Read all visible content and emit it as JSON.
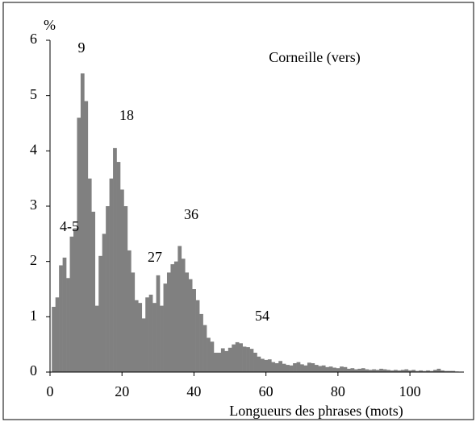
{
  "chart_data": {
    "type": "bar",
    "y_label": "%",
    "x_label": "Longueurs des phrases (mots)",
    "annotations": [
      "Corneille (vers)",
      "9",
      "18",
      "4-5",
      "27",
      "36",
      "54"
    ],
    "color": "#808080",
    "x": [
      1,
      2,
      3,
      4,
      5,
      6,
      7,
      8,
      9,
      10,
      11,
      12,
      13,
      14,
      15,
      16,
      17,
      18,
      19,
      20,
      21,
      22,
      23,
      24,
      25,
      26,
      27,
      28,
      29,
      30,
      31,
      32,
      33,
      34,
      35,
      36,
      37,
      38,
      39,
      40,
      41,
      42,
      43,
      44,
      45,
      46,
      47,
      48,
      49,
      50,
      51,
      52,
      53,
      54,
      55,
      56,
      57,
      58,
      59,
      60,
      61,
      62,
      63,
      64,
      65,
      66,
      67,
      68,
      69,
      70,
      71,
      72,
      73,
      74,
      75,
      76,
      77,
      78,
      79,
      80,
      81,
      82,
      83,
      84,
      85,
      86,
      87,
      88,
      89,
      90,
      91,
      92,
      93,
      94,
      95,
      96,
      97,
      98,
      99,
      100,
      101,
      102,
      103,
      104,
      105,
      106,
      107,
      108,
      109,
      110,
      111,
      112,
      113
    ],
    "values": [
      1.18,
      1.35,
      1.93,
      2.07,
      1.7,
      2.45,
      2.6,
      4.6,
      5.4,
      4.9,
      3.5,
      2.9,
      1.2,
      2.1,
      2.5,
      3.0,
      3.5,
      4.05,
      3.8,
      3.3,
      3.0,
      2.2,
      1.8,
      1.3,
      1.25,
      0.97,
      1.35,
      1.4,
      1.25,
      1.75,
      1.2,
      1.6,
      1.8,
      1.95,
      2.0,
      2.28,
      2.05,
      1.8,
      1.68,
      1.5,
      1.3,
      1.05,
      0.85,
      0.62,
      0.55,
      0.35,
      0.35,
      0.43,
      0.38,
      0.44,
      0.5,
      0.54,
      0.52,
      0.46,
      0.45,
      0.42,
      0.35,
      0.28,
      0.24,
      0.22,
      0.23,
      0.18,
      0.16,
      0.2,
      0.15,
      0.13,
      0.12,
      0.16,
      0.18,
      0.14,
      0.12,
      0.17,
      0.16,
      0.13,
      0.11,
      0.12,
      0.09,
      0.1,
      0.08,
      0.07,
      0.1,
      0.09,
      0.06,
      0.07,
      0.05,
      0.06,
      0.07,
      0.05,
      0.04,
      0.05,
      0.04,
      0.06,
      0.05,
      0.04,
      0.03,
      0.04,
      0.03,
      0.04,
      0.05,
      0.03,
      0.04,
      0.02,
      0.03,
      0.02,
      0.03,
      0.02,
      0.04,
      0.06,
      0.03,
      0.02,
      0.02,
      0.02,
      0.01
    ],
    "xlim": [
      0,
      115
    ],
    "ylim": [
      0,
      6
    ],
    "xticks": [
      0,
      20,
      40,
      60,
      80,
      100
    ],
    "yticks": [
      0,
      1,
      2,
      3,
      4,
      5,
      6
    ]
  }
}
